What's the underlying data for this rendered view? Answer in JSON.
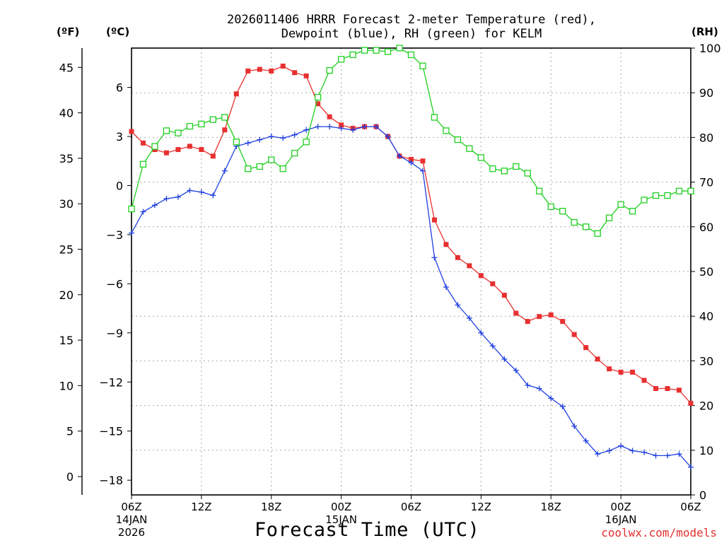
{
  "chart_data": {
    "type": "line",
    "title_line1": "2026011406 HRRR Forecast 2-meter Temperature (red),",
    "title_line2": "Dewpoint (blue), RH (green) for KELM",
    "xlabel": "Forecast Time (UTC)",
    "left_outer_unit": "(ºF)",
    "left_inner_unit": "(ºC)",
    "right_unit": "(RH)",
    "credit": "coolwx.com/models",
    "x_ticks": [
      {
        "hour": 0,
        "line1": "06Z",
        "line2": "14JAN",
        "line3": "2026"
      },
      {
        "hour": 6,
        "line1": "12Z"
      },
      {
        "hour": 12,
        "line1": "18Z"
      },
      {
        "hour": 18,
        "line1": "00Z",
        "line2": "15JAN"
      },
      {
        "hour": 24,
        "line1": "06Z"
      },
      {
        "hour": 30,
        "line1": "12Z"
      },
      {
        "hour": 36,
        "line1": "18Z"
      },
      {
        "hour": 42,
        "line1": "00Z",
        "line2": "16JAN"
      },
      {
        "hour": 48,
        "line1": "06Z"
      }
    ],
    "xlim": [
      0,
      48
    ],
    "ylim_c": [
      -18.9,
      8.4
    ],
    "ylim_rh": [
      0,
      100
    ],
    "yticks_c": [
      -18,
      -15,
      -12,
      -9,
      -6,
      -3,
      0,
      3,
      6
    ],
    "yticks_f": [
      0,
      5,
      10,
      15,
      20,
      25,
      30,
      35,
      40,
      45
    ],
    "yticks_rh": [
      0,
      10,
      20,
      30,
      40,
      50,
      60,
      70,
      80,
      90,
      100
    ],
    "hours": [
      0,
      1,
      2,
      3,
      4,
      5,
      6,
      7,
      8,
      9,
      10,
      11,
      12,
      13,
      14,
      15,
      16,
      17,
      18,
      19,
      20,
      21,
      22,
      23,
      24,
      25,
      26,
      27,
      28,
      29,
      30,
      31,
      32,
      33,
      34,
      35,
      36,
      37,
      38,
      39,
      40,
      41,
      42,
      43,
      44,
      45,
      46,
      47,
      48
    ],
    "series": [
      {
        "name": "Temperature",
        "unit": "C",
        "color": "#e83030",
        "marker": "filled-square",
        "values": [
          3.3,
          2.6,
          2.2,
          2.0,
          2.2,
          2.4,
          2.2,
          1.8,
          3.4,
          5.6,
          7.0,
          7.1,
          7.0,
          7.3,
          6.9,
          6.7,
          5.0,
          4.2,
          3.7,
          3.5,
          3.6,
          3.6,
          3.0,
          1.8,
          1.6,
          1.5,
          -2.1,
          -3.6,
          -4.4,
          -4.9,
          -5.5,
          -6.0,
          -6.7,
          -7.8,
          -8.3,
          -8.0,
          -7.9,
          -8.3,
          -9.1,
          -9.9,
          -10.6,
          -11.2,
          -11.4,
          -11.4,
          -11.9,
          -12.4,
          -12.4,
          -12.5,
          -13.3
        ]
      },
      {
        "name": "Dewpoint",
        "unit": "C",
        "color": "#2040e0",
        "marker": "plus",
        "values": [
          -2.9,
          -1.6,
          -1.2,
          -0.8,
          -0.7,
          -0.3,
          -0.4,
          -0.6,
          0.9,
          2.4,
          2.6,
          2.8,
          3.0,
          2.9,
          3.1,
          3.4,
          3.6,
          3.6,
          3.5,
          3.4,
          3.6,
          3.6,
          3.0,
          1.8,
          1.4,
          0.9,
          -4.4,
          -6.2,
          -7.3,
          -8.1,
          -9.0,
          -9.8,
          -10.6,
          -11.3,
          -12.2,
          -12.4,
          -13.0,
          -13.5,
          -14.7,
          -15.6,
          -16.4,
          -16.2,
          -15.9,
          -16.2,
          -16.3,
          -16.5,
          -16.5,
          -16.4,
          -17.2
        ]
      },
      {
        "name": "RH",
        "unit": "%",
        "color": "#20d020",
        "marker": "open-square",
        "values": [
          64,
          74,
          78,
          81.5,
          81,
          82.5,
          83,
          84,
          84.5,
          79,
          73,
          73.5,
          75,
          73,
          76.5,
          79,
          89,
          95,
          97.5,
          98.5,
          99.5,
          99.5,
          99.2,
          100,
          98.5,
          96,
          84.5,
          81.5,
          79.5,
          77.5,
          75.5,
          73,
          72.5,
          73.5,
          72,
          68,
          64.5,
          63.5,
          61,
          60,
          58.5,
          62,
          65,
          63.5,
          66,
          67,
          67,
          68,
          68
        ]
      }
    ]
  }
}
